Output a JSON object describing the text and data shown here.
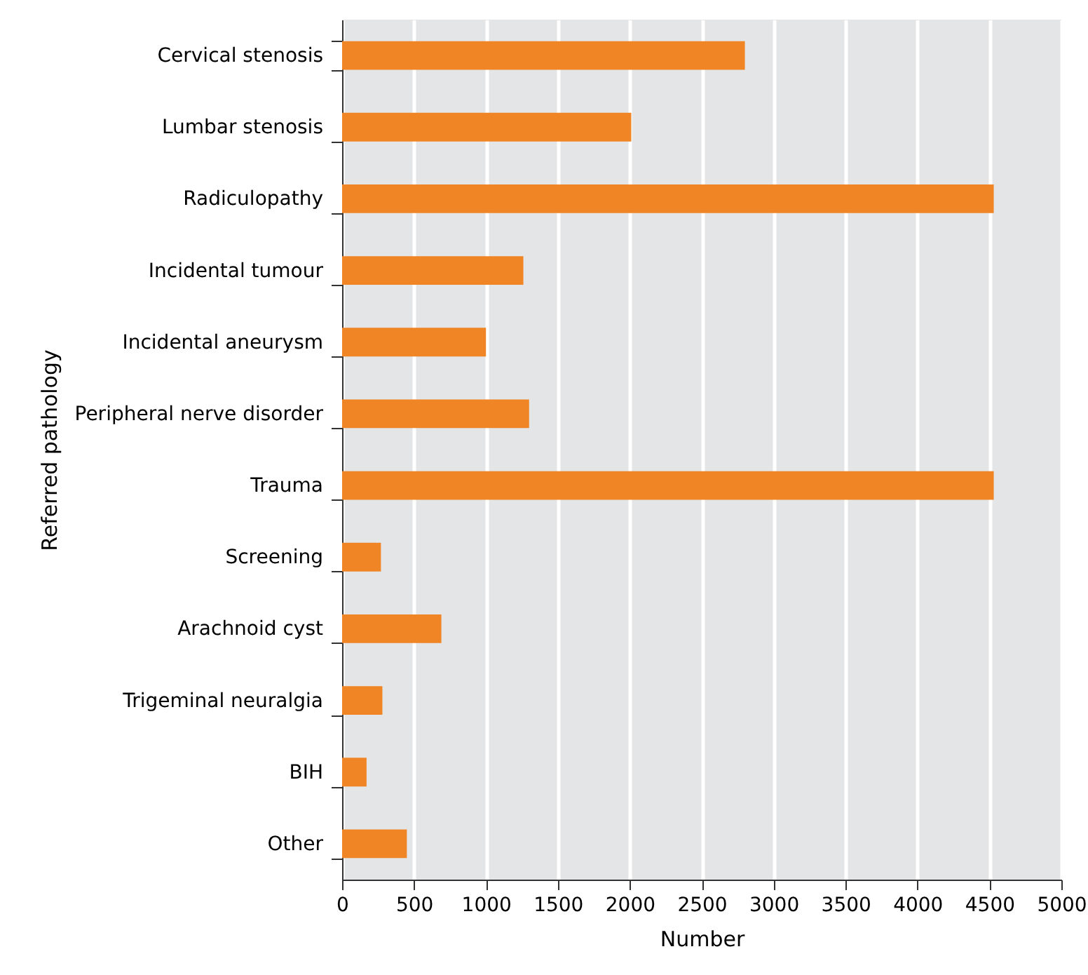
{
  "chart_data": {
    "type": "bar",
    "orientation": "horizontal",
    "xlabel": "Number",
    "ylabel": "Referred pathology",
    "categories": [
      "Cervical stenosis",
      "Lumbar stenosis",
      "Radiculopathy",
      "Incidental tumour",
      "Incidental aneurysm",
      "Peripheral nerve disorder",
      "Trauma",
      "Screening",
      "Arachnoid cyst",
      "Trigeminal neuralgia",
      "BIH",
      "Other"
    ],
    "values": [
      2800,
      2010,
      4530,
      1260,
      1000,
      1300,
      4530,
      270,
      690,
      280,
      170,
      450
    ],
    "color": "#f08526",
    "xlim": [
      0,
      5000
    ],
    "xticks": [
      0,
      500,
      1000,
      1500,
      2000,
      2500,
      3000,
      3500,
      4000,
      4500,
      5000
    ],
    "grid": "x"
  }
}
